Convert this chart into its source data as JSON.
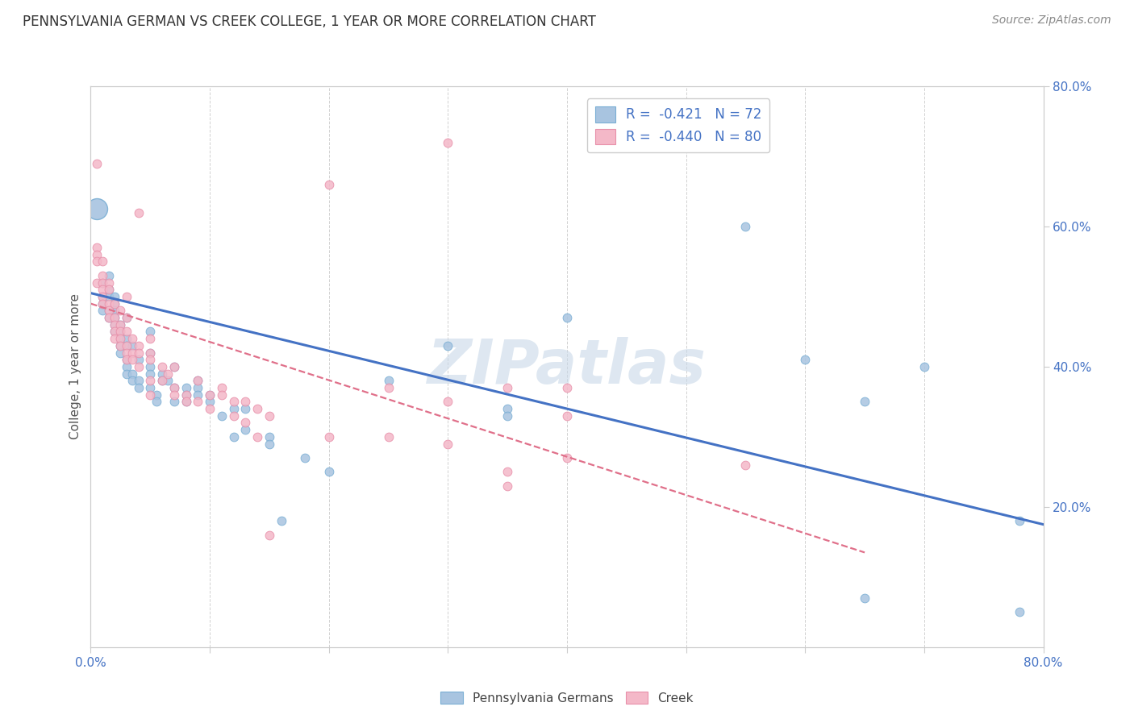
{
  "title": "PENNSYLVANIA GERMAN VS CREEK COLLEGE, 1 YEAR OR MORE CORRELATION CHART",
  "source": "Source: ZipAtlas.com",
  "xtick_vals": [
    0.0,
    0.1,
    0.2,
    0.3,
    0.4,
    0.5,
    0.6,
    0.7,
    0.8
  ],
  "xtick_labels": [
    "0.0%",
    "",
    "",
    "",
    "",
    "",
    "",
    "",
    "80.0%"
  ],
  "ytick_vals": [
    0.2,
    0.4,
    0.6,
    0.8
  ],
  "ytick_labels": [
    "20.0%",
    "40.0%",
    "60.0%",
    "80.0%"
  ],
  "xmin": 0.0,
  "xmax": 0.8,
  "ymin": 0.0,
  "ymax": 0.8,
  "ylabel": "College, 1 year or more",
  "watermark": "ZIPatlas",
  "background_color": "#ffffff",
  "grid_color": "#cccccc",
  "title_color": "#333333",
  "axis_tick_color": "#4472c4",
  "blue_marker_color": "#a8c4e0",
  "blue_marker_edge": "#7bafd4",
  "pink_marker_color": "#f4b8c8",
  "pink_marker_edge": "#e890aa",
  "watermark_color": "#c8d8e8",
  "scatter_size": 60,
  "big_blue_size": 350,
  "blue_line_color": "#4472c4",
  "pink_line_color": "#e0708a",
  "legend_R_color": "#4472c4",
  "blue_scatter": [
    [
      0.005,
      0.625
    ],
    [
      0.01,
      0.52
    ],
    [
      0.01,
      0.5
    ],
    [
      0.01,
      0.49
    ],
    [
      0.01,
      0.48
    ],
    [
      0.015,
      0.53
    ],
    [
      0.015,
      0.51
    ],
    [
      0.015,
      0.5
    ],
    [
      0.015,
      0.48
    ],
    [
      0.015,
      0.47
    ],
    [
      0.02,
      0.5
    ],
    [
      0.02,
      0.49
    ],
    [
      0.02,
      0.48
    ],
    [
      0.02,
      0.47
    ],
    [
      0.02,
      0.46
    ],
    [
      0.02,
      0.45
    ],
    [
      0.025,
      0.46
    ],
    [
      0.025,
      0.45
    ],
    [
      0.025,
      0.44
    ],
    [
      0.025,
      0.43
    ],
    [
      0.025,
      0.42
    ],
    [
      0.03,
      0.47
    ],
    [
      0.03,
      0.44
    ],
    [
      0.03,
      0.43
    ],
    [
      0.03,
      0.41
    ],
    [
      0.03,
      0.4
    ],
    [
      0.03,
      0.39
    ],
    [
      0.035,
      0.43
    ],
    [
      0.035,
      0.39
    ],
    [
      0.035,
      0.38
    ],
    [
      0.04,
      0.41
    ],
    [
      0.04,
      0.38
    ],
    [
      0.04,
      0.37
    ],
    [
      0.05,
      0.45
    ],
    [
      0.05,
      0.42
    ],
    [
      0.05,
      0.4
    ],
    [
      0.05,
      0.39
    ],
    [
      0.05,
      0.37
    ],
    [
      0.055,
      0.36
    ],
    [
      0.055,
      0.35
    ],
    [
      0.06,
      0.39
    ],
    [
      0.06,
      0.38
    ],
    [
      0.065,
      0.38
    ],
    [
      0.07,
      0.4
    ],
    [
      0.07,
      0.37
    ],
    [
      0.07,
      0.35
    ],
    [
      0.08,
      0.37
    ],
    [
      0.08,
      0.36
    ],
    [
      0.08,
      0.35
    ],
    [
      0.09,
      0.38
    ],
    [
      0.09,
      0.37
    ],
    [
      0.09,
      0.36
    ],
    [
      0.1,
      0.36
    ],
    [
      0.1,
      0.35
    ],
    [
      0.11,
      0.33
    ],
    [
      0.12,
      0.34
    ],
    [
      0.12,
      0.3
    ],
    [
      0.13,
      0.34
    ],
    [
      0.13,
      0.31
    ],
    [
      0.15,
      0.3
    ],
    [
      0.15,
      0.29
    ],
    [
      0.16,
      0.18
    ],
    [
      0.18,
      0.27
    ],
    [
      0.2,
      0.25
    ],
    [
      0.25,
      0.38
    ],
    [
      0.3,
      0.43
    ],
    [
      0.35,
      0.34
    ],
    [
      0.35,
      0.33
    ],
    [
      0.4,
      0.47
    ],
    [
      0.55,
      0.6
    ],
    [
      0.6,
      0.41
    ],
    [
      0.65,
      0.35
    ],
    [
      0.7,
      0.4
    ],
    [
      0.78,
      0.18
    ],
    [
      0.78,
      0.05
    ],
    [
      0.65,
      0.07
    ]
  ],
  "pink_scatter": [
    [
      0.005,
      0.69
    ],
    [
      0.005,
      0.57
    ],
    [
      0.005,
      0.56
    ],
    [
      0.005,
      0.55
    ],
    [
      0.005,
      0.52
    ],
    [
      0.01,
      0.55
    ],
    [
      0.01,
      0.53
    ],
    [
      0.01,
      0.52
    ],
    [
      0.01,
      0.51
    ],
    [
      0.01,
      0.5
    ],
    [
      0.01,
      0.49
    ],
    [
      0.015,
      0.52
    ],
    [
      0.015,
      0.51
    ],
    [
      0.015,
      0.49
    ],
    [
      0.015,
      0.48
    ],
    [
      0.015,
      0.47
    ],
    [
      0.02,
      0.49
    ],
    [
      0.02,
      0.47
    ],
    [
      0.02,
      0.46
    ],
    [
      0.02,
      0.45
    ],
    [
      0.02,
      0.44
    ],
    [
      0.025,
      0.46
    ],
    [
      0.025,
      0.48
    ],
    [
      0.025,
      0.45
    ],
    [
      0.025,
      0.44
    ],
    [
      0.025,
      0.43
    ],
    [
      0.03,
      0.5
    ],
    [
      0.03,
      0.47
    ],
    [
      0.03,
      0.45
    ],
    [
      0.03,
      0.43
    ],
    [
      0.03,
      0.42
    ],
    [
      0.03,
      0.41
    ],
    [
      0.035,
      0.44
    ],
    [
      0.035,
      0.42
    ],
    [
      0.035,
      0.41
    ],
    [
      0.04,
      0.43
    ],
    [
      0.04,
      0.42
    ],
    [
      0.04,
      0.4
    ],
    [
      0.05,
      0.44
    ],
    [
      0.05,
      0.42
    ],
    [
      0.05,
      0.41
    ],
    [
      0.05,
      0.38
    ],
    [
      0.05,
      0.36
    ],
    [
      0.06,
      0.4
    ],
    [
      0.06,
      0.38
    ],
    [
      0.065,
      0.39
    ],
    [
      0.07,
      0.4
    ],
    [
      0.07,
      0.37
    ],
    [
      0.07,
      0.36
    ],
    [
      0.08,
      0.36
    ],
    [
      0.08,
      0.35
    ],
    [
      0.09,
      0.38
    ],
    [
      0.09,
      0.35
    ],
    [
      0.1,
      0.36
    ],
    [
      0.1,
      0.34
    ],
    [
      0.11,
      0.37
    ],
    [
      0.11,
      0.36
    ],
    [
      0.12,
      0.35
    ],
    [
      0.12,
      0.33
    ],
    [
      0.13,
      0.35
    ],
    [
      0.13,
      0.32
    ],
    [
      0.14,
      0.34
    ],
    [
      0.14,
      0.3
    ],
    [
      0.15,
      0.33
    ],
    [
      0.15,
      0.16
    ],
    [
      0.2,
      0.3
    ],
    [
      0.25,
      0.37
    ],
    [
      0.25,
      0.3
    ],
    [
      0.3,
      0.35
    ],
    [
      0.3,
      0.29
    ],
    [
      0.35,
      0.37
    ],
    [
      0.35,
      0.25
    ],
    [
      0.35,
      0.23
    ],
    [
      0.4,
      0.37
    ],
    [
      0.4,
      0.33
    ],
    [
      0.4,
      0.27
    ],
    [
      0.3,
      0.72
    ],
    [
      0.2,
      0.66
    ],
    [
      0.55,
      0.26
    ],
    [
      0.04,
      0.62
    ]
  ],
  "blue_line_x": [
    0.0,
    0.8
  ],
  "blue_line_y": [
    0.505,
    0.175
  ],
  "pink_line_x": [
    0.0,
    0.65
  ],
  "pink_line_y": [
    0.49,
    0.135
  ]
}
